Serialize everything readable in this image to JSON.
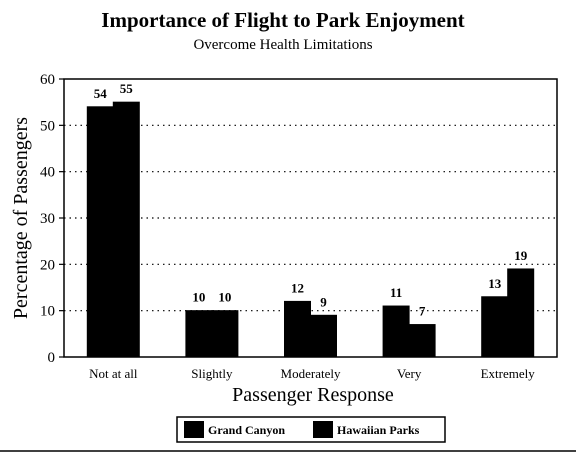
{
  "chart_data": {
    "type": "bar",
    "title": "Importance of Flight to Park Enjoyment",
    "subtitle": "Overcome Health Limitations",
    "xlabel": "Passenger Response",
    "ylabel": "Percentage of Passengers",
    "categories": [
      "Not at all",
      "Slightly",
      "Moderately",
      "Very",
      "Extremely"
    ],
    "series": [
      {
        "name": "Grand Canyon",
        "values": [
          54,
          10,
          12,
          11,
          13
        ]
      },
      {
        "name": "Hawaiian Parks",
        "values": [
          55,
          10,
          9,
          7,
          19
        ]
      }
    ],
    "ylim": [
      0,
      60
    ],
    "yticks": [
      0,
      10,
      20,
      30,
      40,
      50,
      60
    ],
    "grid": true,
    "legend_position": "bottom-center",
    "colors": {
      "bar": "#000000",
      "background": "#ffffff",
      "grid": "#000000"
    }
  }
}
